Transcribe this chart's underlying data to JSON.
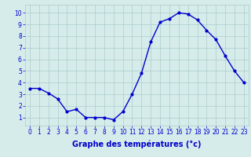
{
  "x": [
    0,
    1,
    2,
    3,
    4,
    5,
    6,
    7,
    8,
    9,
    10,
    11,
    12,
    13,
    14,
    15,
    16,
    17,
    18,
    19,
    20,
    21,
    22,
    23
  ],
  "y": [
    3.5,
    3.5,
    3.1,
    2.6,
    1.5,
    1.7,
    1.0,
    1.0,
    1.0,
    0.8,
    1.5,
    3.0,
    4.8,
    7.5,
    9.2,
    9.5,
    10.0,
    9.9,
    9.4,
    8.5,
    7.7,
    6.3,
    5.0,
    4.0
  ],
  "line_color": "#0000cc",
  "marker": "o",
  "markersize": 2.0,
  "linewidth": 1.0,
  "xlabel": "Graphe des températures (°c)",
  "xlabel_fontsize": 7,
  "xlabel_color": "#0000cc",
  "xlabel_fontweight": "bold",
  "ylabel_ticks": [
    1,
    2,
    3,
    4,
    5,
    6,
    7,
    8,
    9,
    10
  ],
  "xlim": [
    -0.5,
    23.5
  ],
  "ylim": [
    0.3,
    10.7
  ],
  "xticks": [
    0,
    1,
    2,
    3,
    4,
    5,
    6,
    7,
    8,
    9,
    10,
    11,
    12,
    13,
    14,
    15,
    16,
    17,
    18,
    19,
    20,
    21,
    22,
    23
  ],
  "background_color": "#d6ecea",
  "grid_color": "#aacccc",
  "tick_color": "#0000cc",
  "tick_fontsize": 5.5
}
